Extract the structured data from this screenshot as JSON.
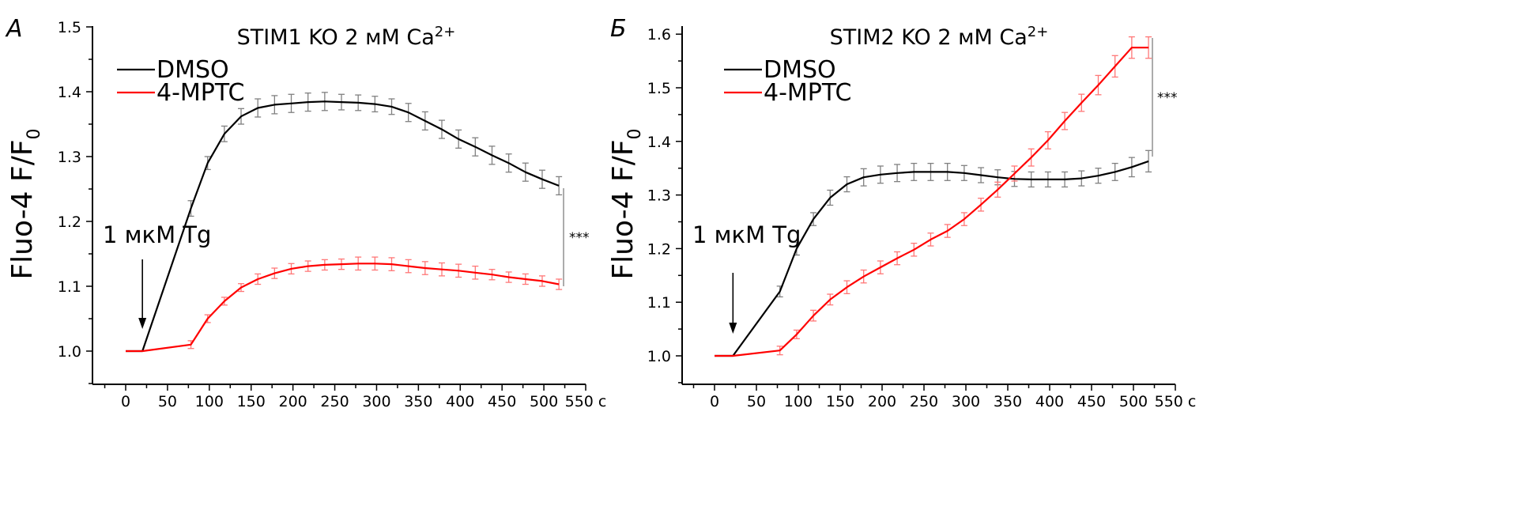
{
  "chart_data": [
    {
      "type": "line",
      "panel_label": "А",
      "title_main": "STIM1 KO 2 мМ Ca",
      "title_sup": "2+",
      "ylabel_pre": "Fluo-4  F/F",
      "ylabel_sub": "0",
      "x_unit": "с",
      "xlim": [
        -40,
        550
      ],
      "ylim": [
        0.95,
        1.5
      ],
      "x_ticks": [
        0,
        50,
        100,
        150,
        200,
        250,
        300,
        350,
        400,
        450,
        500,
        550
      ],
      "y_ticks": [
        "1.0",
        "1.1",
        "1.2",
        "1.3",
        "1.4",
        "1.5"
      ],
      "annotation": "1 мкМ Tg",
      "arrow_x": 20,
      "significance": "***",
      "series": [
        {
          "name": "DMSO",
          "color": "#000000",
          "error_color": "#808080",
          "x": [
            0,
            20,
            78,
            98,
            118,
            138,
            158,
            178,
            198,
            218,
            238,
            258,
            278,
            298,
            318,
            338,
            358,
            378,
            398,
            418,
            438,
            458,
            478,
            498,
            518
          ],
          "y": [
            1.0,
            1.0,
            1.22,
            1.29,
            1.335,
            1.362,
            1.375,
            1.38,
            1.382,
            1.384,
            1.385,
            1.384,
            1.383,
            1.381,
            1.377,
            1.368,
            1.355,
            1.342,
            1.327,
            1.315,
            1.302,
            1.29,
            1.276,
            1.265,
            1.255
          ],
          "err": [
            0,
            0,
            0.012,
            0.01,
            0.012,
            0.012,
            0.014,
            0.014,
            0.014,
            0.014,
            0.014,
            0.012,
            0.012,
            0.012,
            0.012,
            0.014,
            0.014,
            0.014,
            0.014,
            0.014,
            0.014,
            0.014,
            0.014,
            0.014,
            0.014
          ]
        },
        {
          "name": "4-MPTC",
          "color": "#ff0000",
          "error_color": "#ff7777",
          "x": [
            0,
            20,
            78,
            98,
            118,
            138,
            158,
            178,
            198,
            218,
            238,
            258,
            278,
            298,
            318,
            338,
            358,
            378,
            398,
            418,
            438,
            458,
            478,
            498,
            518
          ],
          "y": [
            1.0,
            1.0,
            1.01,
            1.05,
            1.077,
            1.098,
            1.111,
            1.12,
            1.127,
            1.131,
            1.133,
            1.134,
            1.135,
            1.135,
            1.134,
            1.131,
            1.128,
            1.126,
            1.124,
            1.121,
            1.118,
            1.114,
            1.111,
            1.108,
            1.103
          ],
          "err": [
            0,
            0,
            0.006,
            0.006,
            0.006,
            0.006,
            0.008,
            0.008,
            0.008,
            0.008,
            0.008,
            0.008,
            0.01,
            0.01,
            0.01,
            0.01,
            0.01,
            0.01,
            0.01,
            0.01,
            0.008,
            0.008,
            0.008,
            0.008,
            0.008
          ]
        }
      ]
    },
    {
      "type": "line",
      "panel_label": "Б",
      "title_main": "STIM2 KO 2 мМ Ca",
      "title_sup": "2+",
      "ylabel_pre": "Fluo-4  F/F",
      "ylabel_sub": "0",
      "x_unit": "с",
      "xlim": [
        -40,
        550
      ],
      "ylim": [
        0.95,
        1.6
      ],
      "x_ticks": [
        0,
        50,
        100,
        150,
        200,
        250,
        300,
        350,
        400,
        450,
        500,
        550
      ],
      "y_ticks": [
        "1.0",
        "1.1",
        "1.2",
        "1.3",
        "1.4",
        "1.5",
        "1.6"
      ],
      "annotation": "1 мкМ Tg",
      "arrow_x": 22,
      "significance": "***",
      "series": [
        {
          "name": "DMSO",
          "color": "#000000",
          "error_color": "#808080",
          "x": [
            0,
            22,
            78,
            98,
            118,
            138,
            158,
            178,
            198,
            218,
            238,
            258,
            278,
            298,
            318,
            338,
            358,
            378,
            398,
            418,
            438,
            458,
            478,
            498,
            518
          ],
          "y": [
            1.0,
            1.0,
            1.12,
            1.2,
            1.255,
            1.295,
            1.32,
            1.333,
            1.338,
            1.341,
            1.343,
            1.343,
            1.343,
            1.341,
            1.337,
            1.333,
            1.33,
            1.329,
            1.329,
            1.329,
            1.331,
            1.336,
            1.343,
            1.352,
            1.363
          ],
          "err": [
            0,
            0,
            0.01,
            0.012,
            0.012,
            0.014,
            0.014,
            0.016,
            0.016,
            0.016,
            0.016,
            0.016,
            0.016,
            0.014,
            0.014,
            0.014,
            0.014,
            0.014,
            0.014,
            0.014,
            0.014,
            0.014,
            0.016,
            0.018,
            0.02
          ]
        },
        {
          "name": "4-MPTC",
          "color": "#ff0000",
          "error_color": "#ff7777",
          "x": [
            0,
            22,
            78,
            98,
            118,
            138,
            158,
            178,
            198,
            218,
            238,
            258,
            278,
            298,
            318,
            338,
            358,
            378,
            398,
            418,
            438,
            458,
            478,
            498,
            518
          ],
          "y": [
            1.0,
            1.0,
            1.01,
            1.04,
            1.075,
            1.105,
            1.128,
            1.148,
            1.165,
            1.182,
            1.198,
            1.217,
            1.233,
            1.255,
            1.282,
            1.31,
            1.34,
            1.37,
            1.402,
            1.438,
            1.472,
            1.505,
            1.54,
            1.575,
            1.575
          ],
          "err": [
            0,
            0,
            0.008,
            0.008,
            0.01,
            0.01,
            0.012,
            0.012,
            0.012,
            0.012,
            0.012,
            0.012,
            0.012,
            0.012,
            0.012,
            0.014,
            0.014,
            0.016,
            0.016,
            0.016,
            0.016,
            0.018,
            0.02,
            0.02,
            0.02
          ]
        }
      ]
    }
  ]
}
